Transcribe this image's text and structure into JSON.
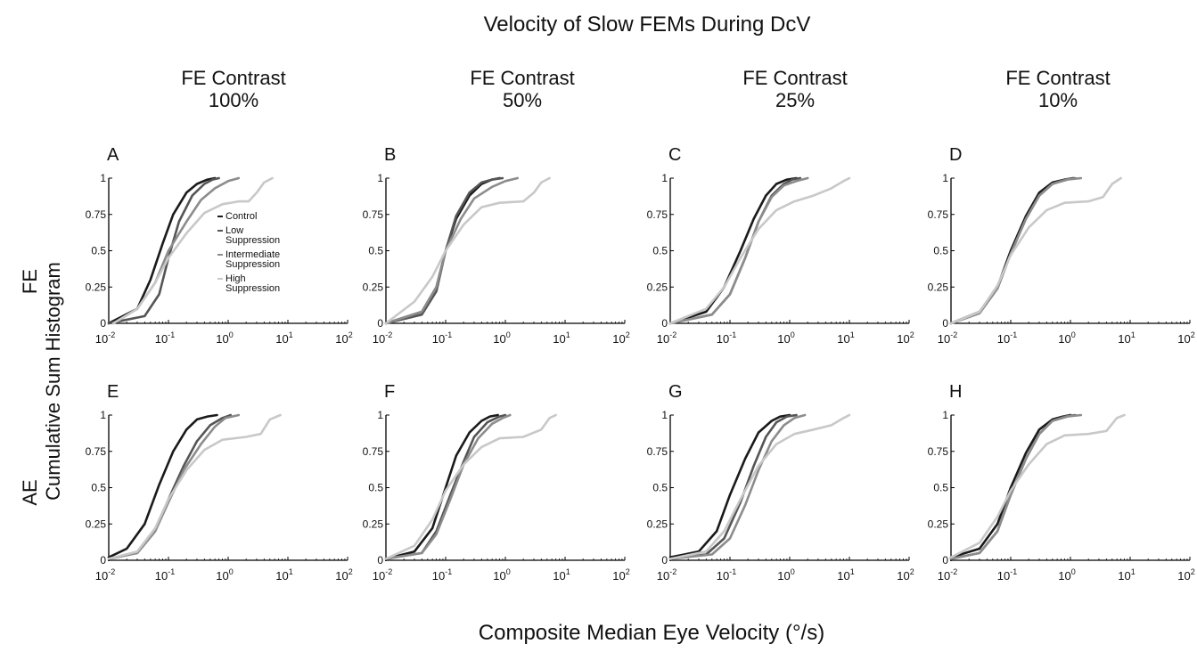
{
  "chart_data": {
    "type": "line",
    "title": "Velocity of Slow FEMs During DcV",
    "xlabel": "Composite Median Eye Velocity (°/s)",
    "ylabel": "Cumulative Sum Histogram",
    "row_labels": [
      "FE",
      "AE"
    ],
    "column_headers": [
      {
        "line1": "FE Contrast",
        "line2": "100%"
      },
      {
        "line1": "FE Contrast",
        "line2": "50%"
      },
      {
        "line1": "FE Contrast",
        "line2": "25%"
      },
      {
        "line1": "FE Contrast",
        "line2": "10%"
      }
    ],
    "x_scale": "log",
    "xlim": [
      0.01,
      100
    ],
    "ylim": [
      0,
      1
    ],
    "x_tick_labels": [
      {
        "base": "10",
        "exp": "-2"
      },
      {
        "base": "10",
        "exp": "-1"
      },
      {
        "base": "10",
        "exp": "0"
      },
      {
        "base": "10",
        "exp": "1"
      },
      {
        "base": "10",
        "exp": "2"
      }
    ],
    "y_tick_labels": [
      "0",
      "0.25",
      "0.5",
      "0.75",
      "1"
    ],
    "legend": {
      "placement": "inside panel A, left-center",
      "entries": [
        {
          "lines": [
            "Control"
          ],
          "color": "#1a1a1a"
        },
        {
          "lines": [
            "Low",
            "Suppression"
          ],
          "color": "#555555"
        },
        {
          "lines": [
            "Intermediate",
            "Suppression"
          ],
          "color": "#8c8c8c"
        },
        {
          "lines": [
            "High",
            "Suppression"
          ],
          "color": "#c8c8c8"
        }
      ]
    },
    "series_colors": [
      "#1a1a1a",
      "#555555",
      "#8c8c8c",
      "#c8c8c8"
    ],
    "panels": [
      {
        "letter": "A",
        "row": 0,
        "col": 0,
        "series": [
          {
            "x": [
              0.01,
              0.03,
              0.05,
              0.08,
              0.12,
              0.2,
              0.3,
              0.45,
              0.6
            ],
            "y": [
              0,
              0.1,
              0.3,
              0.55,
              0.75,
              0.9,
              0.96,
              0.99,
              1
            ]
          },
          {
            "x": [
              0.01,
              0.04,
              0.07,
              0.1,
              0.15,
              0.25,
              0.4,
              0.55,
              0.7
            ],
            "y": [
              0,
              0.05,
              0.2,
              0.45,
              0.7,
              0.88,
              0.96,
              0.99,
              1
            ]
          },
          {
            "x": [
              0.012,
              0.03,
              0.06,
              0.1,
              0.2,
              0.35,
              0.6,
              1.0,
              1.5
            ],
            "y": [
              0,
              0.1,
              0.28,
              0.5,
              0.7,
              0.85,
              0.93,
              0.98,
              1
            ]
          },
          {
            "x": [
              0.012,
              0.03,
              0.06,
              0.1,
              0.2,
              0.4,
              0.8,
              1.5,
              2.2,
              3.0,
              4.0,
              5.5
            ],
            "y": [
              0,
              0.1,
              0.28,
              0.45,
              0.62,
              0.76,
              0.82,
              0.84,
              0.84,
              0.9,
              0.97,
              1
            ]
          }
        ]
      },
      {
        "letter": "B",
        "row": 0,
        "col": 1,
        "series": [
          {
            "x": [
              0.01,
              0.04,
              0.07,
              0.1,
              0.15,
              0.25,
              0.4,
              0.6,
              0.8
            ],
            "y": [
              0,
              0.08,
              0.25,
              0.5,
              0.72,
              0.88,
              0.96,
              0.99,
              1
            ]
          },
          {
            "x": [
              0.01,
              0.04,
              0.07,
              0.1,
              0.15,
              0.25,
              0.4,
              0.6,
              0.9
            ],
            "y": [
              0,
              0.06,
              0.22,
              0.5,
              0.74,
              0.9,
              0.97,
              0.99,
              1
            ]
          },
          {
            "x": [
              0.01,
              0.04,
              0.07,
              0.1,
              0.18,
              0.3,
              0.6,
              1.0,
              1.6
            ],
            "y": [
              0,
              0.08,
              0.25,
              0.5,
              0.72,
              0.86,
              0.94,
              0.98,
              1
            ]
          },
          {
            "x": [
              0.01,
              0.03,
              0.06,
              0.1,
              0.2,
              0.4,
              0.8,
              2.0,
              3.0,
              4.0,
              5.5
            ],
            "y": [
              0,
              0.15,
              0.32,
              0.5,
              0.68,
              0.8,
              0.83,
              0.84,
              0.9,
              0.97,
              1
            ]
          }
        ]
      },
      {
        "letter": "C",
        "row": 0,
        "col": 2,
        "series": [
          {
            "x": [
              0.01,
              0.04,
              0.08,
              0.15,
              0.25,
              0.4,
              0.6,
              0.9,
              1.3
            ],
            "y": [
              0,
              0.08,
              0.25,
              0.5,
              0.72,
              0.88,
              0.96,
              0.99,
              1
            ]
          },
          {
            "x": [
              0.01,
              0.05,
              0.1,
              0.18,
              0.3,
              0.5,
              0.8,
              1.1,
              1.5
            ],
            "y": [
              0,
              0.06,
              0.2,
              0.45,
              0.7,
              0.88,
              0.96,
              0.99,
              1
            ]
          },
          {
            "x": [
              0.01,
              0.05,
              0.1,
              0.18,
              0.3,
              0.5,
              0.8,
              1.3,
              2.0
            ],
            "y": [
              0,
              0.06,
              0.2,
              0.45,
              0.7,
              0.87,
              0.95,
              0.98,
              1
            ]
          },
          {
            "x": [
              0.01,
              0.04,
              0.08,
              0.15,
              0.3,
              0.6,
              1.2,
              2.5,
              5.0,
              8.0,
              10.0
            ],
            "y": [
              0,
              0.1,
              0.25,
              0.45,
              0.65,
              0.78,
              0.84,
              0.88,
              0.93,
              0.98,
              1
            ]
          }
        ]
      },
      {
        "letter": "D",
        "row": 0,
        "col": 3,
        "series": [
          {
            "x": [
              0.01,
              0.03,
              0.06,
              0.1,
              0.18,
              0.3,
              0.5,
              0.8,
              1.1
            ],
            "y": [
              0,
              0.08,
              0.25,
              0.5,
              0.74,
              0.9,
              0.97,
              0.99,
              1
            ]
          },
          {
            "x": [
              0.01,
              0.03,
              0.06,
              0.1,
              0.18,
              0.3,
              0.5,
              0.8,
              1.2
            ],
            "y": [
              0,
              0.07,
              0.24,
              0.48,
              0.72,
              0.88,
              0.96,
              0.99,
              1
            ]
          },
          {
            "x": [
              0.01,
              0.03,
              0.06,
              0.1,
              0.18,
              0.3,
              0.5,
              0.9,
              1.5
            ],
            "y": [
              0,
              0.07,
              0.24,
              0.48,
              0.72,
              0.88,
              0.96,
              0.99,
              1
            ]
          },
          {
            "x": [
              0.01,
              0.03,
              0.06,
              0.1,
              0.2,
              0.4,
              0.8,
              2.0,
              3.5,
              5.0,
              7.0
            ],
            "y": [
              0,
              0.08,
              0.26,
              0.47,
              0.66,
              0.78,
              0.83,
              0.84,
              0.87,
              0.96,
              1
            ]
          }
        ]
      },
      {
        "letter": "E",
        "row": 1,
        "col": 0,
        "series": [
          {
            "x": [
              0.01,
              0.02,
              0.04,
              0.07,
              0.12,
              0.2,
              0.3,
              0.45,
              0.65
            ],
            "y": [
              0.02,
              0.08,
              0.25,
              0.52,
              0.75,
              0.9,
              0.97,
              0.99,
              1
            ]
          },
          {
            "x": [
              0.01,
              0.03,
              0.06,
              0.1,
              0.18,
              0.3,
              0.5,
              0.8,
              1.1
            ],
            "y": [
              0.01,
              0.05,
              0.2,
              0.42,
              0.65,
              0.82,
              0.93,
              0.98,
              1
            ]
          },
          {
            "x": [
              0.01,
              0.03,
              0.06,
              0.1,
              0.18,
              0.35,
              0.6,
              0.9,
              1.5
            ],
            "y": [
              0.01,
              0.05,
              0.2,
              0.4,
              0.62,
              0.8,
              0.92,
              0.98,
              1
            ]
          },
          {
            "x": [
              0.01,
              0.03,
              0.06,
              0.1,
              0.2,
              0.4,
              0.8,
              2.0,
              3.5,
              5.0,
              7.5
            ],
            "y": [
              0.01,
              0.06,
              0.22,
              0.42,
              0.62,
              0.76,
              0.83,
              0.85,
              0.87,
              0.97,
              1
            ]
          }
        ]
      },
      {
        "letter": "F",
        "row": 1,
        "col": 1,
        "series": [
          {
            "x": [
              0.01,
              0.03,
              0.06,
              0.1,
              0.15,
              0.25,
              0.4,
              0.55,
              0.75
            ],
            "y": [
              0.01,
              0.06,
              0.22,
              0.5,
              0.72,
              0.88,
              0.96,
              0.99,
              1
            ]
          },
          {
            "x": [
              0.01,
              0.04,
              0.07,
              0.12,
              0.2,
              0.3,
              0.5,
              0.8,
              1.0
            ],
            "y": [
              0.01,
              0.05,
              0.2,
              0.45,
              0.68,
              0.85,
              0.95,
              0.99,
              1
            ]
          },
          {
            "x": [
              0.01,
              0.04,
              0.07,
              0.12,
              0.2,
              0.35,
              0.6,
              0.9,
              1.2
            ],
            "y": [
              0.01,
              0.05,
              0.18,
              0.42,
              0.66,
              0.84,
              0.94,
              0.98,
              1
            ]
          },
          {
            "x": [
              0.01,
              0.03,
              0.06,
              0.1,
              0.2,
              0.4,
              0.8,
              2.0,
              4.0,
              5.5,
              7.0
            ],
            "y": [
              0.01,
              0.1,
              0.28,
              0.48,
              0.66,
              0.78,
              0.84,
              0.85,
              0.9,
              0.98,
              1
            ]
          }
        ]
      },
      {
        "letter": "G",
        "row": 1,
        "col": 2,
        "series": [
          {
            "x": [
              0.01,
              0.03,
              0.06,
              0.1,
              0.18,
              0.3,
              0.5,
              0.7,
              1.0
            ],
            "y": [
              0.02,
              0.06,
              0.2,
              0.45,
              0.7,
              0.88,
              0.96,
              0.99,
              1
            ]
          },
          {
            "x": [
              0.01,
              0.04,
              0.08,
              0.15,
              0.25,
              0.4,
              0.6,
              0.9,
              1.3
            ],
            "y": [
              0.01,
              0.04,
              0.15,
              0.4,
              0.65,
              0.85,
              0.95,
              0.99,
              1
            ]
          },
          {
            "x": [
              0.01,
              0.05,
              0.1,
              0.18,
              0.3,
              0.5,
              0.8,
              1.2,
              1.8
            ],
            "y": [
              0.01,
              0.04,
              0.15,
              0.38,
              0.62,
              0.82,
              0.93,
              0.98,
              1
            ]
          },
          {
            "x": [
              0.01,
              0.04,
              0.08,
              0.15,
              0.3,
              0.6,
              1.2,
              2.5,
              5.0,
              8.0,
              10.0
            ],
            "y": [
              0.01,
              0.06,
              0.2,
              0.42,
              0.65,
              0.8,
              0.87,
              0.9,
              0.93,
              0.98,
              1
            ]
          }
        ]
      },
      {
        "letter": "H",
        "row": 1,
        "col": 3,
        "series": [
          {
            "x": [
              0.01,
              0.03,
              0.06,
              0.1,
              0.18,
              0.3,
              0.5,
              0.75,
              1.0
            ],
            "y": [
              0.02,
              0.08,
              0.25,
              0.5,
              0.74,
              0.9,
              0.97,
              0.99,
              1
            ]
          },
          {
            "x": [
              0.01,
              0.03,
              0.06,
              0.1,
              0.18,
              0.3,
              0.5,
              0.8,
              1.2
            ],
            "y": [
              0.01,
              0.05,
              0.2,
              0.45,
              0.7,
              0.87,
              0.96,
              0.99,
              1
            ]
          },
          {
            "x": [
              0.01,
              0.03,
              0.06,
              0.1,
              0.18,
              0.3,
              0.5,
              0.9,
              1.5
            ],
            "y": [
              0.01,
              0.05,
              0.2,
              0.45,
              0.7,
              0.87,
              0.96,
              0.99,
              1
            ]
          },
          {
            "x": [
              0.01,
              0.03,
              0.06,
              0.1,
              0.2,
              0.4,
              0.8,
              2.0,
              4.0,
              6.0,
              8.0
            ],
            "y": [
              0.02,
              0.12,
              0.3,
              0.48,
              0.66,
              0.8,
              0.86,
              0.87,
              0.89,
              0.98,
              1
            ]
          }
        ]
      }
    ]
  }
}
